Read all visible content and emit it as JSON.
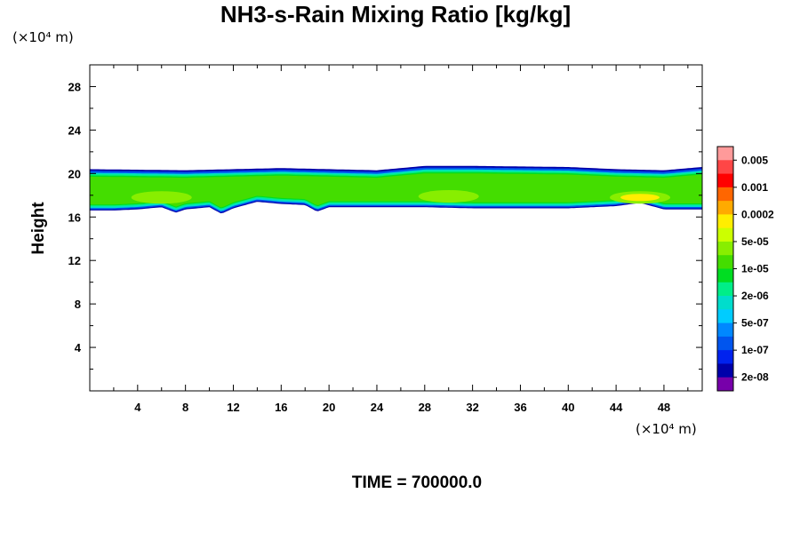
{
  "chart_data": {
    "type": "heatmap",
    "title": "NH3-s-Rain Mixing Ratio [kg/kg]",
    "ylabel": "Height",
    "x_unit_label": "(×10⁴ m)",
    "y_unit_label": "(×10⁴ m)",
    "time_label": "TIME = 700000.0",
    "xlim": [
      0,
      51.2
    ],
    "ylim": [
      0,
      30
    ],
    "x_ticks": [
      4,
      8,
      12,
      16,
      20,
      24,
      28,
      32,
      36,
      40,
      44,
      48
    ],
    "y_ticks": [
      4,
      8,
      12,
      16,
      20,
      24,
      28
    ],
    "field_layer": {
      "description": "thin layer of nonzero mixing ratio",
      "bottom_height": [
        [
          0,
          16.6
        ],
        [
          2,
          16.6
        ],
        [
          4,
          16.7
        ],
        [
          6,
          16.9
        ],
        [
          7.2,
          16.4
        ],
        [
          8,
          16.7
        ],
        [
          10,
          16.9
        ],
        [
          11,
          16.3
        ],
        [
          12,
          16.8
        ],
        [
          14,
          17.4
        ],
        [
          16,
          17.2
        ],
        [
          18,
          17.1
        ],
        [
          19,
          16.5
        ],
        [
          20,
          16.9
        ],
        [
          24,
          16.9
        ],
        [
          28,
          16.9
        ],
        [
          32,
          16.8
        ],
        [
          36,
          16.8
        ],
        [
          40,
          16.8
        ],
        [
          44,
          17.0
        ],
        [
          46,
          17.3
        ],
        [
          48,
          16.7
        ],
        [
          51.2,
          16.7
        ]
      ],
      "top_height": [
        [
          0,
          20.4
        ],
        [
          8,
          20.3
        ],
        [
          16,
          20.5
        ],
        [
          24,
          20.3
        ],
        [
          28,
          20.7
        ],
        [
          32,
          20.7
        ],
        [
          40,
          20.6
        ],
        [
          44,
          20.4
        ],
        [
          48,
          20.3
        ],
        [
          51.2,
          20.6
        ]
      ],
      "core_maxima": [
        {
          "x": 6,
          "y": 17.8,
          "value_class": "5e-05"
        },
        {
          "x": 30,
          "y": 17.9,
          "value_class": "5e-05"
        },
        {
          "x": 46,
          "y": 17.8,
          "value_class": "0.0002"
        }
      ]
    },
    "colorbar": {
      "labels": [
        "0.005",
        "0.001",
        "0.0002",
        "5e-05",
        "1e-05",
        "2e-06",
        "5e-07",
        "1e-07",
        "2e-08"
      ],
      "colors": [
        "#ff9a9a",
        "#ff4646",
        "#ff0000",
        "#ff6600",
        "#ffaa00",
        "#ffee00",
        "#ccff00",
        "#88ee00",
        "#44dd00",
        "#00dd22",
        "#00ee88",
        "#00ddcc",
        "#00ccff",
        "#0088ff",
        "#0055ee",
        "#0022ee",
        "#0000aa",
        "#7700aa"
      ]
    }
  }
}
